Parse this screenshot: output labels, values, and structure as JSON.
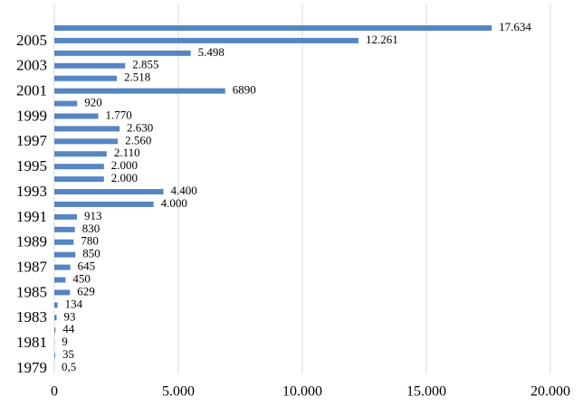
{
  "chart_data": {
    "type": "bar",
    "orientation": "horizontal",
    "categories": [
      "1979",
      null,
      "1981",
      null,
      "1983",
      null,
      "1985",
      null,
      "1987",
      null,
      "1989",
      null,
      "1991",
      null,
      "1993",
      null,
      "1995",
      null,
      "1997",
      null,
      "1999",
      null,
      "2001",
      null,
      "2003",
      null,
      "2005",
      null
    ],
    "values": [
      0.5,
      35,
      9,
      44,
      93,
      134,
      629,
      450,
      645,
      850,
      780,
      830,
      913,
      4000,
      4400,
      2000,
      2000,
      2110,
      2560,
      2630,
      1770,
      920,
      6890,
      2518,
      2855,
      5498,
      12261,
      17634
    ],
    "value_labels": [
      "0,5",
      "35",
      "9",
      "44",
      "93",
      "134",
      "629",
      "450",
      "645",
      "850",
      "780",
      "830",
      "913",
      "4.000",
      "4.400",
      "2.000",
      "2.000",
      "2.110",
      "2.560",
      "2.630",
      "1.770",
      "920",
      "6890",
      "2.518",
      "2.855",
      "5.498",
      "12.261",
      "17.634"
    ],
    "color": "#5685c3",
    "xlim": [
      0,
      20000
    ],
    "xticks": [
      0,
      {
        "value": 5000,
        "label": "5.000"
      },
      {
        "value": 10000,
        "label": "10.000"
      },
      {
        "value": 15000,
        "label": "15.000"
      },
      {
        "value": 20000,
        "label": "20.000"
      }
    ],
    "grid": true
  }
}
